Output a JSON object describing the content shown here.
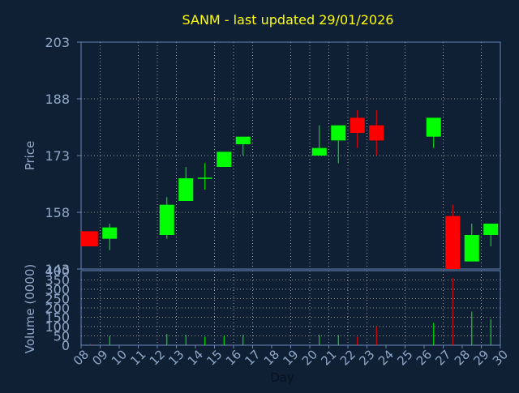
{
  "chart_data": {
    "type": "candlestick",
    "title": "SANM - last updated 29/01/2026",
    "xlabel": "Day",
    "ylabel": "Price",
    "volume_ylabel": "Volume (0000)",
    "price_ylim": [
      143,
      203
    ],
    "price_ticks": [
      "203",
      "188",
      "173",
      "158",
      "143"
    ],
    "volume_ylim": [
      0,
      400
    ],
    "volume_ticks": [
      "400",
      "350",
      "300",
      "250",
      "200",
      "150",
      "100",
      "50",
      "0"
    ],
    "x_range": [
      8,
      30
    ],
    "x_ticks": [
      "08",
      "09",
      "10",
      "11",
      "12",
      "13",
      "14",
      "15",
      "16",
      "17",
      "18",
      "19",
      "20",
      "21",
      "22",
      "23",
      "24",
      "25",
      "26",
      "27",
      "28",
      "29",
      "30"
    ],
    "grid": true,
    "colors": {
      "background": "#0f2035",
      "up": "#00ff00",
      "down": "#ff0000",
      "grid": "#c8c8c8",
      "frame": "#6b86b8",
      "axis_text": "#8fa8c8",
      "title": "#ffff00"
    },
    "candles": [
      {
        "day": 8,
        "open": 153,
        "close": 149,
        "high": 153,
        "low": 149,
        "volume": 10
      },
      {
        "day": 9,
        "open": 151,
        "close": 154,
        "high": 155,
        "low": 148,
        "volume": 50
      },
      {
        "day": 12,
        "open": 152,
        "close": 160,
        "high": 162,
        "low": 151,
        "volume": 60
      },
      {
        "day": 13,
        "open": 161,
        "close": 167,
        "high": 170,
        "low": 161,
        "volume": 55
      },
      {
        "day": 14,
        "open": 167,
        "close": 167,
        "high": 171,
        "low": 164,
        "volume": 45
      },
      {
        "day": 15,
        "open": 170,
        "close": 174,
        "high": 174,
        "low": 170,
        "volume": 50
      },
      {
        "day": 16,
        "open": 176,
        "close": 178,
        "high": 178,
        "low": 173,
        "volume": 55
      },
      {
        "day": 20,
        "open": 173,
        "close": 175,
        "high": 181,
        "low": 173,
        "volume": 55
      },
      {
        "day": 21,
        "open": 177,
        "close": 181,
        "high": 181,
        "low": 171,
        "volume": 55
      },
      {
        "day": 22,
        "open": 183,
        "close": 179,
        "high": 185,
        "low": 175,
        "volume": 45
      },
      {
        "day": 23,
        "open": 181,
        "close": 177,
        "high": 185,
        "low": 173,
        "volume": 100
      },
      {
        "day": 26,
        "open": 178,
        "close": 183,
        "high": 183,
        "low": 175,
        "volume": 120
      },
      {
        "day": 27,
        "open": 157,
        "close": 143,
        "high": 160,
        "low": 143,
        "volume": 360
      },
      {
        "day": 28,
        "open": 145,
        "close": 152,
        "high": 155,
        "low": 145,
        "volume": 180
      },
      {
        "day": 29,
        "open": 152,
        "close": 155,
        "high": 155,
        "low": 149,
        "volume": 140
      }
    ]
  }
}
